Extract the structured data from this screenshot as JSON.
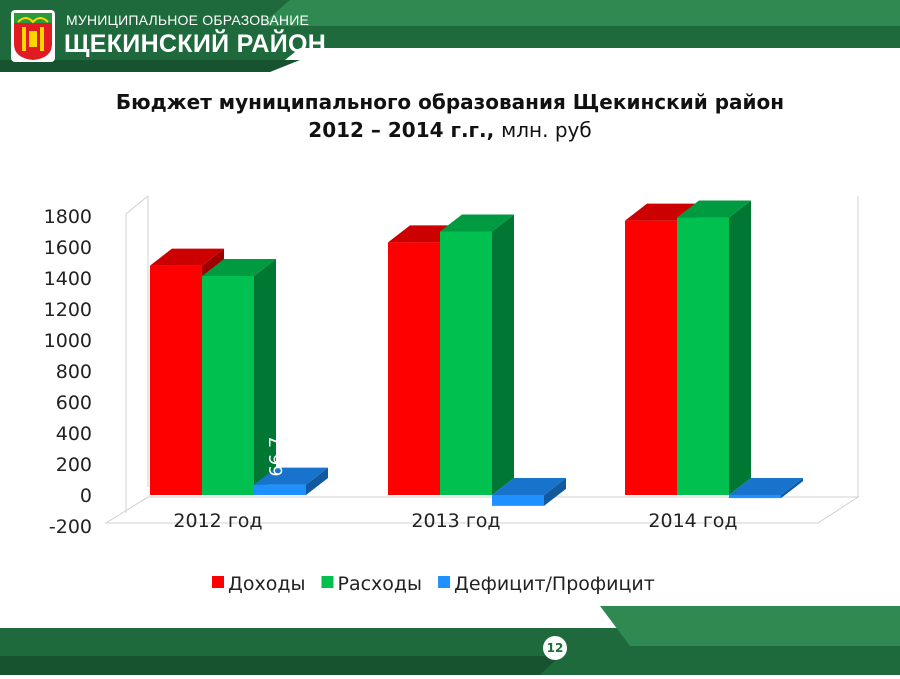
{
  "header": {
    "org_subtitle": "МУНИЦИПАЛЬНОЕ ОБРАЗОВАНИЕ",
    "org_name": "ЩЕКИНСКИЙ РАЙОН",
    "colors": {
      "dark_green": "#1e6a3c",
      "light_green": "#2f8a52"
    },
    "logo_icon": "coat-of-arms-icon"
  },
  "slide": {
    "title_line1": "Бюджет муниципального образования Щекинский район",
    "title_line2": "2012 – 2014 г.г.,",
    "title_unit": "млн. руб",
    "page_number": "12"
  },
  "chart_data": {
    "type": "bar",
    "categories": [
      "2012 год",
      "2013 год",
      "2014 год"
    ],
    "series": [
      {
        "name": "Доходы",
        "color": "#ff0000",
        "values": [
          1480,
          1630,
          1770
        ]
      },
      {
        "name": "Расходы",
        "color": "#00c050",
        "values": [
          1413,
          1700,
          1790
        ]
      },
      {
        "name": "Дефицит/Профицит",
        "color": "#1e90ff",
        "values": [
          67,
          -70,
          -20
        ]
      }
    ],
    "data_labels": [
      "66,7"
    ],
    "yticks": [
      "1800",
      "1600",
      "1400",
      "1200",
      "1000",
      "800",
      "600",
      "400",
      "200",
      "0",
      "-200"
    ],
    "ylim": [
      -200,
      1800
    ],
    "legend_position": "bottom",
    "grid": false
  }
}
